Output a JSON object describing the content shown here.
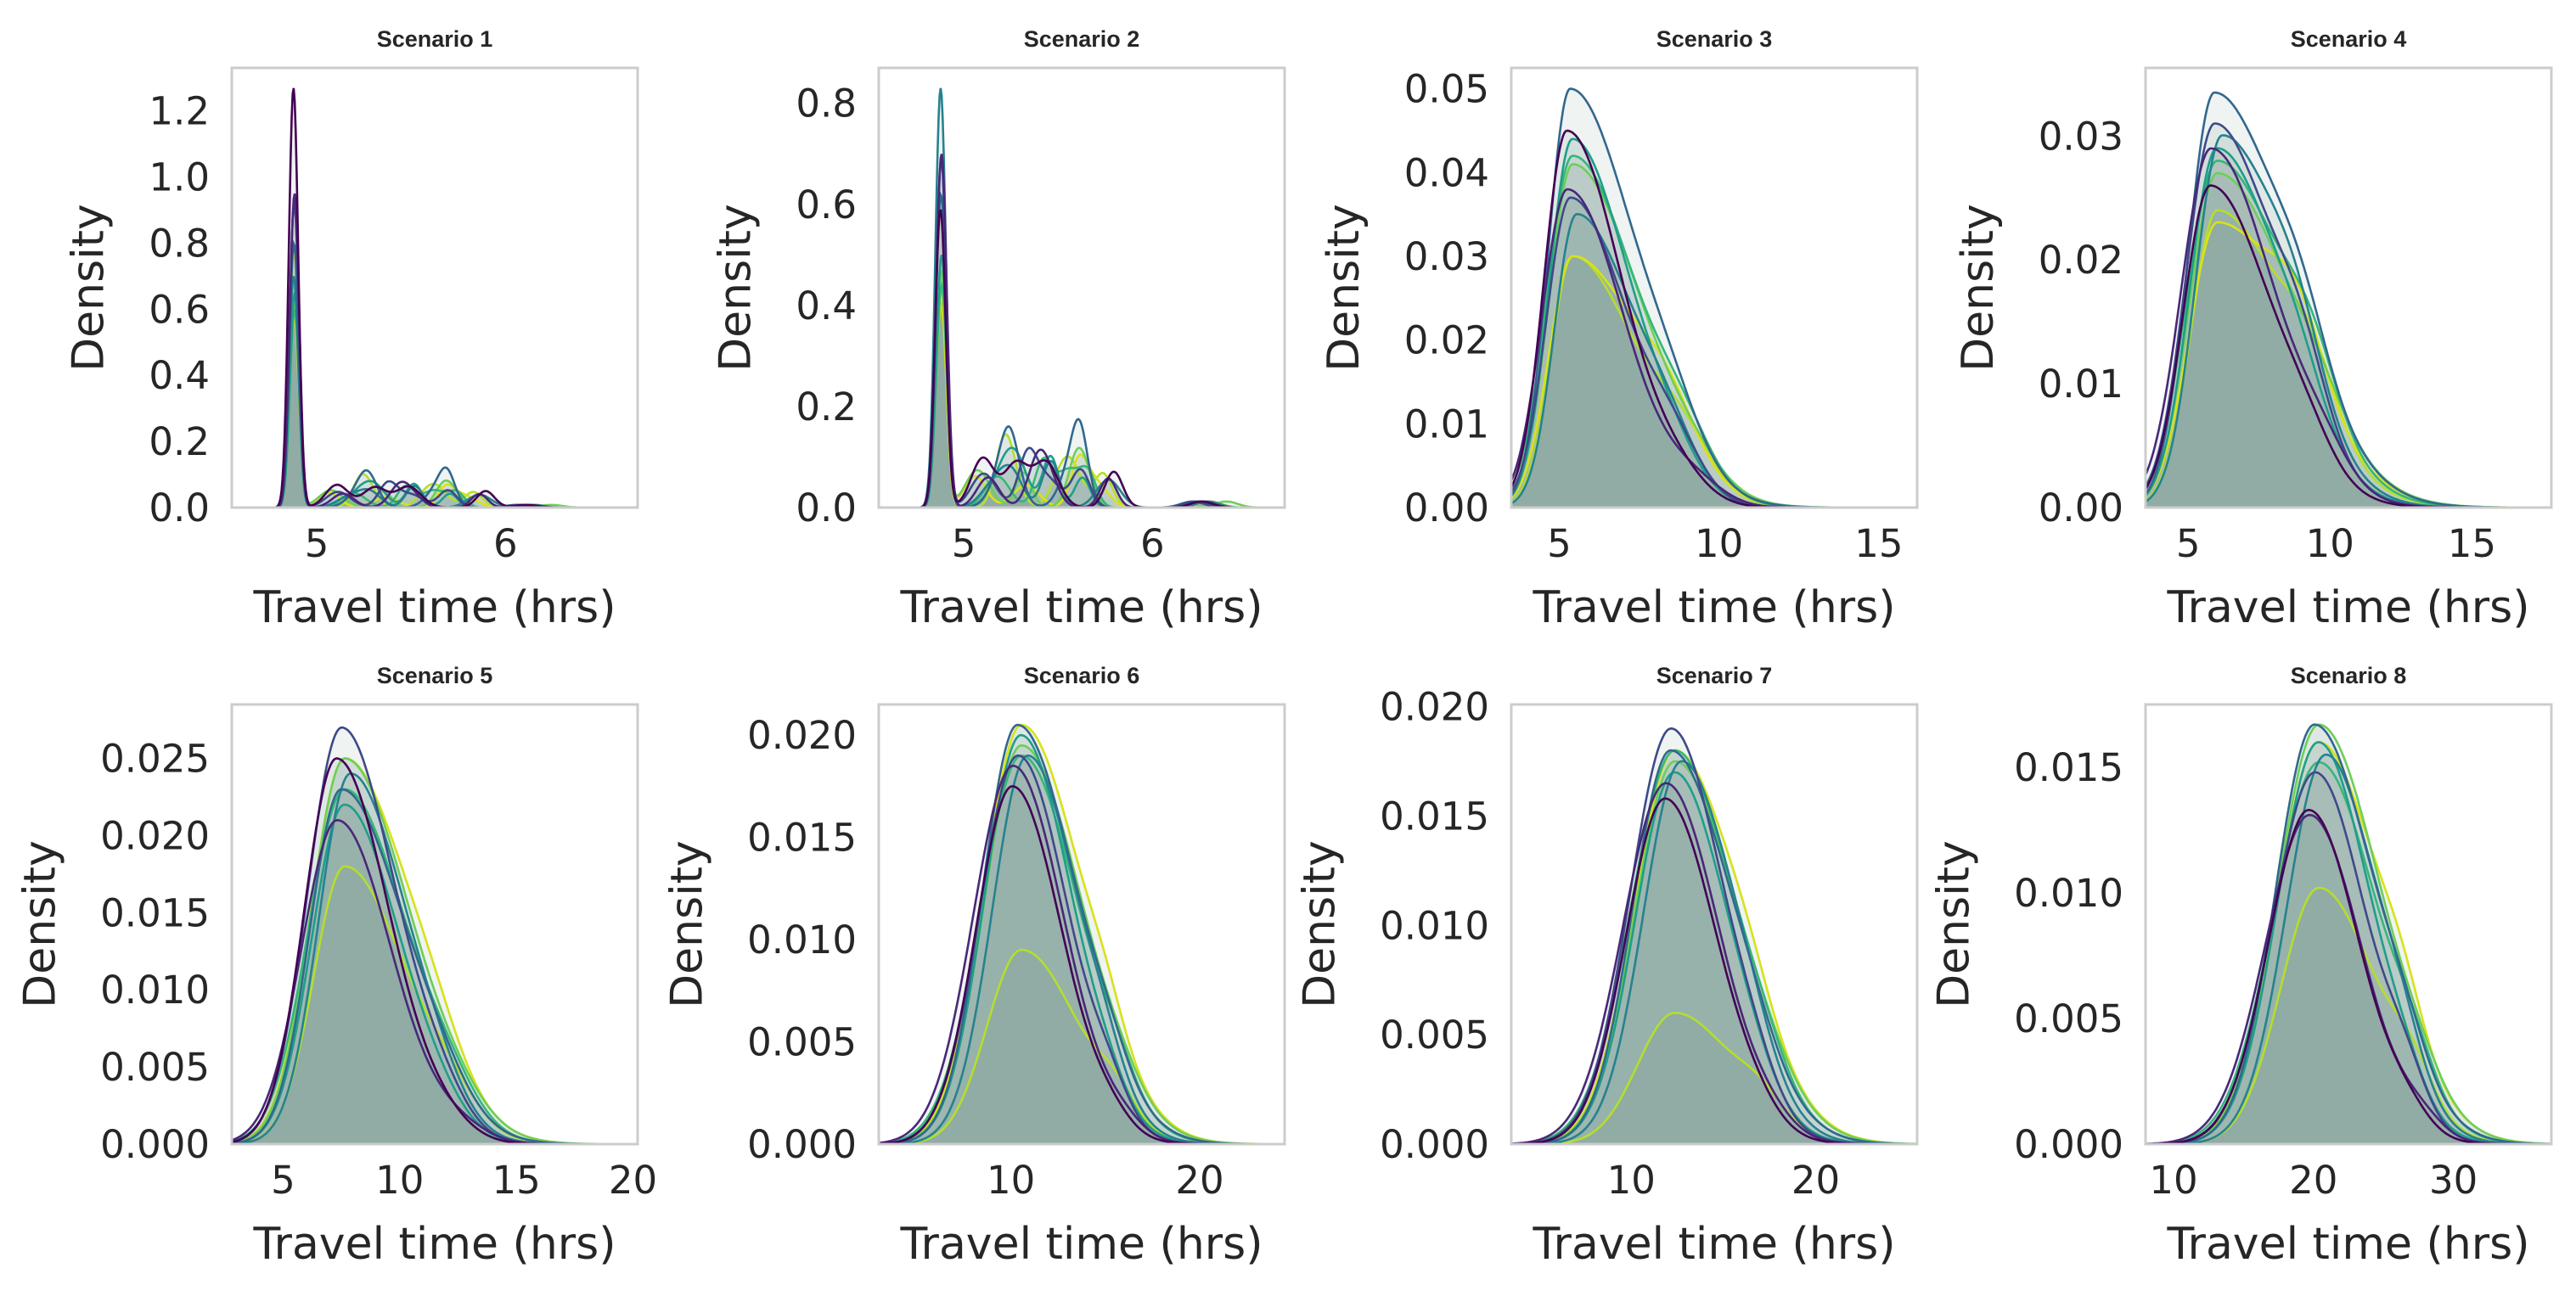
{
  "palette": [
    "#440154",
    "#482878",
    "#3e4a89",
    "#31688e",
    "#26828e",
    "#1f9e89",
    "#35b779",
    "#6ece58",
    "#b5de2b",
    "#d8e219"
  ],
  "fill_color": "#4a7b6a",
  "chart_data": [
    {
      "type": "area",
      "title": "Scenario 1",
      "xlabel": "Travel time (hrs)",
      "ylabel": "Density",
      "xlim": [
        4.55,
        6.7
      ],
      "ylim": [
        0,
        1.33
      ],
      "xticks": [
        5,
        6
      ],
      "yticks": [
        0.0,
        0.2,
        0.4,
        0.6,
        0.8,
        1.0,
        1.2
      ],
      "tick_decimals": 1,
      "grid": false,
      "legend": "none",
      "peaks_x": [
        4.88
      ],
      "peak_widths": [
        0.025
      ],
      "peak_heights": [
        1.27,
        0.95,
        0.92,
        0.8,
        0.7,
        0.65,
        0.6,
        0.62,
        0.57,
        0.78
      ],
      "tail": {
        "from": 5.05,
        "to": 5.9,
        "amp": 0.06,
        "extra_x": 6.15,
        "extra_amp": 0.008
      }
    },
    {
      "type": "area",
      "title": "Scenario 2",
      "xlabel": "Travel time (hrs)",
      "ylabel": "Density",
      "xlim": [
        4.55,
        6.7
      ],
      "ylim": [
        0,
        0.87
      ],
      "xticks": [
        5,
        6
      ],
      "yticks": [
        0.0,
        0.2,
        0.4,
        0.6,
        0.8
      ],
      "tick_decimals": 1,
      "grid": false,
      "legend": "none",
      "peaks_x": [
        4.88
      ],
      "peak_widths": [
        0.028
      ],
      "peak_heights": [
        0.59,
        0.7,
        0.69,
        0.62,
        0.83,
        0.5,
        0.44,
        0.47,
        0.4,
        0.42
      ],
      "tail": {
        "from": 5.05,
        "to": 5.8,
        "amp": 0.085,
        "extra_x": 6.3,
        "extra_amp": 0.012
      }
    },
    {
      "type": "area",
      "title": "Scenario 3",
      "xlabel": "Travel time (hrs)",
      "ylabel": "Density",
      "xlim": [
        3.5,
        16.2
      ],
      "ylim": [
        0,
        0.0525
      ],
      "xticks": [
        5,
        10,
        15
      ],
      "yticks": [
        0.0,
        0.01,
        0.02,
        0.03,
        0.04,
        0.05
      ],
      "tick_decimals": 2,
      "grid": false,
      "legend": "none",
      "peak_mode": 5.4,
      "left_width": 0.75,
      "right_width": 1.9,
      "peak_heights": [
        0.045,
        0.038,
        0.037,
        0.05,
        0.035,
        0.044,
        0.042,
        0.041,
        0.03,
        0.03
      ],
      "bump": {
        "x": 8.8,
        "amp": 0.0045,
        "width": 0.9
      }
    },
    {
      "type": "area",
      "title": "Scenario 4",
      "xlabel": "Travel time (hrs)",
      "ylabel": "Density",
      "xlim": [
        3.5,
        17.8
      ],
      "ylim": [
        0,
        0.0355
      ],
      "xticks": [
        5,
        10,
        15
      ],
      "yticks": [
        0.0,
        0.01,
        0.02,
        0.03
      ],
      "tick_decimals": 2,
      "grid": false,
      "legend": "none",
      "peak_mode": 6.0,
      "left_width": 1.0,
      "right_width": 2.4,
      "peak_heights": [
        0.026,
        0.029,
        0.031,
        0.0335,
        0.03,
        0.029,
        0.028,
        0.027,
        0.024,
        0.023
      ],
      "bump": {
        "x": 9.3,
        "amp": 0.004,
        "width": 0.9
      }
    },
    {
      "type": "area",
      "title": "Scenario 5",
      "xlabel": "Travel time (hrs)",
      "ylabel": "Density",
      "xlim": [
        2.8,
        20.2
      ],
      "ylim": [
        0,
        0.0285
      ],
      "xticks": [
        5,
        10,
        15,
        20
      ],
      "yticks": [
        0.0,
        0.005,
        0.01,
        0.015,
        0.02,
        0.025
      ],
      "tick_decimals": 3,
      "grid": false,
      "legend": "none",
      "peak_mode": 7.6,
      "left_width": 1.45,
      "right_width": 2.5,
      "peak_heights": [
        0.025,
        0.021,
        0.027,
        0.023,
        0.024,
        0.022,
        0.023,
        0.025,
        0.018,
        0.025
      ],
      "bump": {
        "x": 12.0,
        "amp": 0.0015,
        "width": 1.2
      }
    },
    {
      "type": "area",
      "title": "Scenario 6",
      "xlabel": "Travel time (hrs)",
      "ylabel": "Density",
      "xlim": [
        3.0,
        24.5
      ],
      "ylim": [
        0,
        0.0215
      ],
      "xticks": [
        10,
        20
      ],
      "yticks": [
        0.0,
        0.005,
        0.01,
        0.015,
        0.02
      ],
      "tick_decimals": 3,
      "grid": false,
      "legend": "none",
      "peak_mode": 10.5,
      "left_width": 2.0,
      "right_width": 2.9,
      "peak_heights": [
        0.0175,
        0.0185,
        0.019,
        0.0205,
        0.019,
        0.02,
        0.019,
        0.0195,
        0.0095,
        0.0205
      ],
      "bump": {
        "x": 15.5,
        "amp": 0.001,
        "width": 1.0
      }
    },
    {
      "type": "area",
      "title": "Scenario 7",
      "xlabel": "Travel time (hrs)",
      "ylabel": "Density",
      "xlim": [
        3.5,
        25.5
      ],
      "ylim": [
        0,
        0.0201
      ],
      "xticks": [
        10,
        20
      ],
      "yticks": [
        0.0,
        0.005,
        0.01,
        0.015,
        0.02
      ],
      "tick_decimals": 3,
      "grid": false,
      "legend": "none",
      "peak_mode": 12.3,
      "left_width": 2.2,
      "right_width": 3.1,
      "peak_heights": [
        0.0158,
        0.0165,
        0.019,
        0.018,
        0.0175,
        0.017,
        0.018,
        0.0175,
        0.006,
        0.018
      ],
      "bump": {
        "x": 17.0,
        "amp": 0.0008,
        "width": 1.2
      }
    },
    {
      "type": "area",
      "title": "Scenario 8",
      "xlabel": "Travel time (hrs)",
      "ylabel": "Density",
      "xlim": [
        8.0,
        37.0
      ],
      "ylim": [
        0,
        0.0175
      ],
      "xticks": [
        10,
        20,
        30
      ],
      "yticks": [
        0.0,
        0.005,
        0.01,
        0.015
      ],
      "tick_decimals": 3,
      "grid": false,
      "legend": "none",
      "peak_mode": 20.3,
      "left_width": 3.0,
      "right_width": 4.0,
      "peak_heights": [
        0.0133,
        0.0131,
        0.0148,
        0.0167,
        0.0155,
        0.016,
        0.0152,
        0.0167,
        0.0102,
        0.016
      ],
      "bump": {
        "x": 27.0,
        "amp": 0.0012,
        "width": 1.5
      }
    }
  ]
}
